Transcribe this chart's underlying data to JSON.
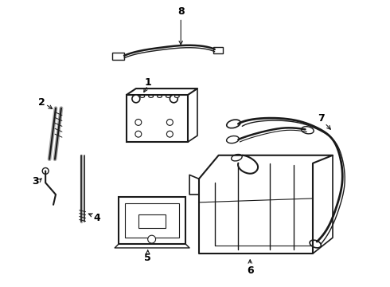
{
  "background_color": "#ffffff",
  "line_color": "#1a1a1a",
  "text_color": "#000000",
  "figsize": [
    4.9,
    3.6
  ],
  "dpi": 100
}
